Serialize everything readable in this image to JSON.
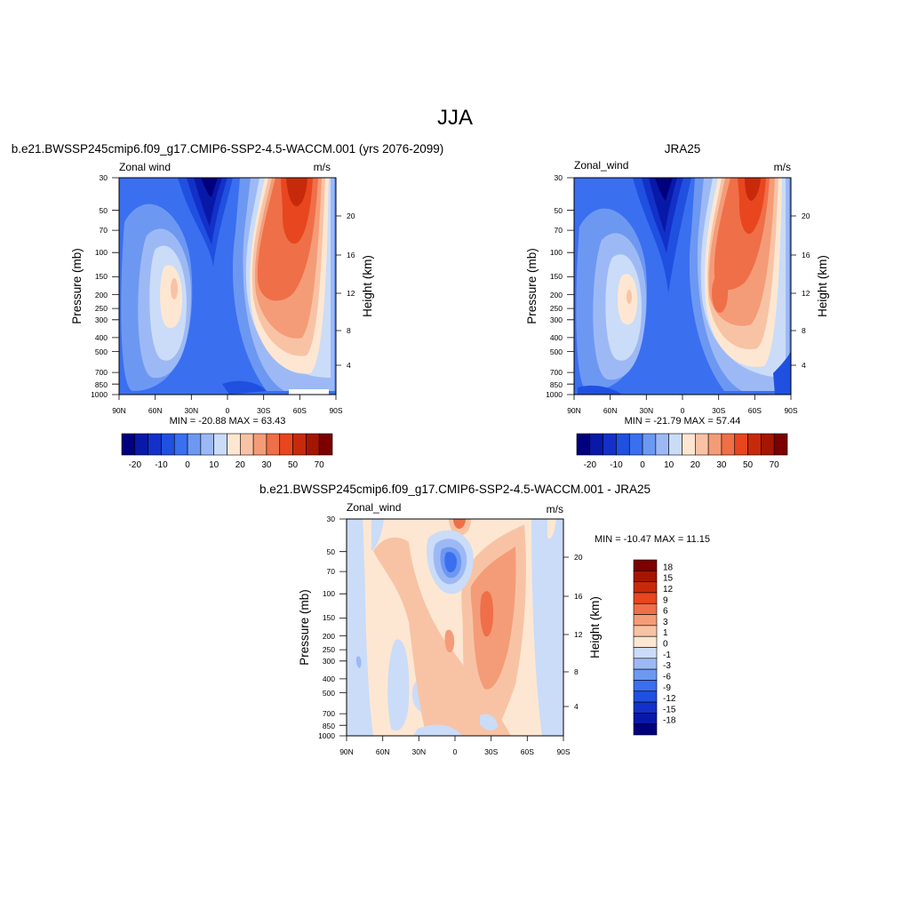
{
  "figure": {
    "title": "JJA"
  },
  "chart_data": [
    {
      "type": "heatmap",
      "title": "b.e21.BWSSP245cmip6.f09_g17.CMIP6-SSP2-4.5-WACCM.001 (yrs 2076-2099)",
      "left_label": "Zonal wind",
      "right_label": "m/s",
      "ylabel": "Pressure (mb)",
      "ylabel_right": "Height (km)",
      "x_ticks": [
        "90N",
        "60N",
        "30N",
        "0",
        "30S",
        "60S",
        "90S"
      ],
      "y_ticks": [
        "30",
        "50",
        "70",
        "100",
        "150",
        "200",
        "250",
        "300",
        "400",
        "500",
        "700",
        "850",
        "1000"
      ],
      "y_ticks_right": [
        "20",
        "16",
        "12",
        "8",
        "4"
      ],
      "ylim": [
        1000,
        30
      ],
      "y_scale": "log",
      "stats": "MIN = -20.88  MAX =  63.43",
      "min": -20.88,
      "max": 63.43,
      "colorbar": {
        "orientation": "horizontal",
        "tick_labels": [
          "-20",
          "-10",
          "0",
          "10",
          "20",
          "30",
          "50",
          "70"
        ],
        "colors": [
          "#00007f",
          "#0819a8",
          "#1331c9",
          "#2050e0",
          "#3a6ff0",
          "#6d98f2",
          "#9db9f5",
          "#cadcf8",
          "#fde7d2",
          "#f8c3a5",
          "#f49c77",
          "#ef6f48",
          "#e8461f",
          "#c72a0a",
          "#a41602",
          "#7c0000"
        ]
      }
    },
    {
      "type": "heatmap",
      "title": "JRA25",
      "left_label": "Zonal_wind",
      "right_label": "m/s",
      "ylabel": "Pressure (mb)",
      "ylabel_right": "Height (km)",
      "x_ticks": [
        "90N",
        "60N",
        "30N",
        "0",
        "30S",
        "60S",
        "90S"
      ],
      "y_ticks": [
        "30",
        "50",
        "70",
        "100",
        "150",
        "200",
        "250",
        "300",
        "400",
        "500",
        "700",
        "850",
        "1000"
      ],
      "y_ticks_right": [
        "20",
        "16",
        "12",
        "8",
        "4"
      ],
      "ylim": [
        1000,
        30
      ],
      "y_scale": "log",
      "stats": "MIN = -21.79  MAX =  57.44",
      "min": -21.79,
      "max": 57.44,
      "colorbar": {
        "orientation": "horizontal",
        "tick_labels": [
          "-20",
          "-10",
          "0",
          "10",
          "20",
          "30",
          "50",
          "70"
        ],
        "colors": [
          "#00007f",
          "#0819a8",
          "#1331c9",
          "#2050e0",
          "#3a6ff0",
          "#6d98f2",
          "#9db9f5",
          "#cadcf8",
          "#fde7d2",
          "#f8c3a5",
          "#f49c77",
          "#ef6f48",
          "#e8461f",
          "#c72a0a",
          "#a41602",
          "#7c0000"
        ]
      }
    },
    {
      "type": "heatmap",
      "title": "b.e21.BWSSP245cmip6.f09_g17.CMIP6-SSP2-4.5-WACCM.001 - JRA25",
      "left_label": "Zonal_wind",
      "right_label": "m/s",
      "ylabel": "Pressure (mb)",
      "ylabel_right": "Height (km)",
      "x_ticks": [
        "90N",
        "60N",
        "30N",
        "0",
        "30S",
        "60S",
        "90S"
      ],
      "y_ticks": [
        "30",
        "50",
        "70",
        "100",
        "150",
        "200",
        "250",
        "300",
        "400",
        "500",
        "700",
        "850",
        "1000"
      ],
      "y_ticks_right": [
        "20",
        "16",
        "12",
        "8",
        "4"
      ],
      "ylim": [
        1000,
        30
      ],
      "y_scale": "log",
      "stats": "MIN = -10.47  MAX =  11.15",
      "min": -10.47,
      "max": 11.15,
      "colorbar": {
        "orientation": "vertical",
        "tick_labels": [
          "18",
          "15",
          "12",
          "9",
          "6",
          "3",
          "1",
          "0",
          "-1",
          "-3",
          "-6",
          "-9",
          "-12",
          "-15",
          "-18"
        ],
        "colors": [
          "#7c0000",
          "#a41602",
          "#c72a0a",
          "#e8461f",
          "#ef6f48",
          "#f49c77",
          "#f8c3a5",
          "#fde7d2",
          "#cadcf8",
          "#9db9f5",
          "#6d98f2",
          "#3a6ff0",
          "#2050e0",
          "#1331c9",
          "#0819a8",
          "#00007f"
        ]
      }
    }
  ]
}
